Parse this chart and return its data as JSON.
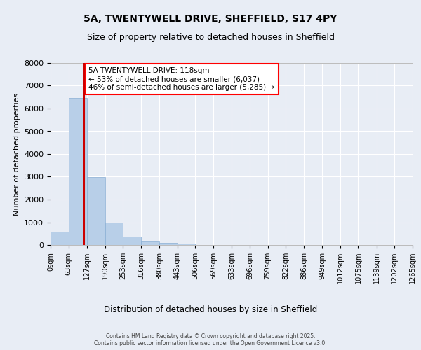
{
  "title_line1": "5A, TWENTYWELL DRIVE, SHEFFIELD, S17 4PY",
  "title_line2": "Size of property relative to detached houses in Sheffield",
  "xlabel": "Distribution of detached houses by size in Sheffield",
  "ylabel": "Number of detached properties",
  "bar_color": "#b8cfe8",
  "bar_edge_color": "#8aafd4",
  "background_color": "#e8edf5",
  "grid_color": "#ffffff",
  "annotation_text": "5A TWENTYWELL DRIVE: 118sqm\n← 53% of detached houses are smaller (6,037)\n46% of semi-detached houses are larger (5,285) →",
  "vline_x": 118,
  "vline_color": "#cc0000",
  "footer_text": "Contains HM Land Registry data © Crown copyright and database right 2025.\nContains public sector information licensed under the Open Government Licence v3.0.",
  "bin_edges": [
    0,
    63,
    127,
    190,
    253,
    316,
    380,
    443,
    506,
    569,
    633,
    696,
    759,
    822,
    886,
    949,
    1012,
    1075,
    1139,
    1202,
    1265
  ],
  "bar_heights": [
    600,
    6450,
    2980,
    1000,
    380,
    165,
    100,
    65,
    0,
    0,
    0,
    0,
    0,
    0,
    0,
    0,
    0,
    0,
    0,
    0
  ],
  "ylim": [
    0,
    8000
  ],
  "yticks": [
    0,
    1000,
    2000,
    3000,
    4000,
    5000,
    6000,
    7000,
    8000
  ],
  "tick_labels": [
    "0sqm",
    "63sqm",
    "127sqm",
    "190sqm",
    "253sqm",
    "316sqm",
    "380sqm",
    "443sqm",
    "506sqm",
    "569sqm",
    "633sqm",
    "696sqm",
    "759sqm",
    "822sqm",
    "886sqm",
    "949sqm",
    "1012sqm",
    "1075sqm",
    "1139sqm",
    "1202sqm",
    "1265sqm"
  ]
}
